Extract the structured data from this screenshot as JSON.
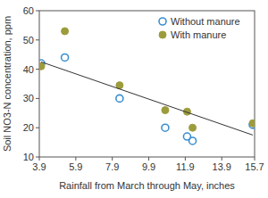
{
  "chart_data": {
    "type": "scatter",
    "x_label": "Rainfall from March through May, inches",
    "y_label": "Soil NO3-N concentration, ppm",
    "xlim": [
      3.9,
      15.7
    ],
    "xticks": [
      3.9,
      5.9,
      7.9,
      9.9,
      11.9,
      13.9,
      15.7
    ],
    "ylim": [
      10,
      60
    ],
    "yticks": [
      10,
      20,
      30,
      40,
      50,
      60
    ],
    "grid": false,
    "legend": "upper-right",
    "series": [
      {
        "name": "Without manure",
        "color": "#3b8fd0",
        "marker": "circle-open",
        "x": [
          4.0,
          5.3,
          8.3,
          10.8,
          12.0,
          12.3,
          15.6
        ],
        "values": [
          42,
          44,
          30,
          20,
          17,
          15.5,
          21
        ]
      },
      {
        "name": "With manure",
        "color": "#9c9c3c",
        "marker": "circle",
        "x": [
          4.0,
          5.3,
          8.3,
          10.8,
          12.0,
          12.3,
          15.6
        ],
        "values": [
          41,
          53,
          34.5,
          26,
          25.5,
          20,
          21.5
        ]
      },
      {
        "type": "line",
        "color": "#333333",
        "line_style": "solid",
        "x": [
          4.0,
          15.6
        ],
        "values": [
          42.5,
          17.5
        ]
      }
    ]
  }
}
